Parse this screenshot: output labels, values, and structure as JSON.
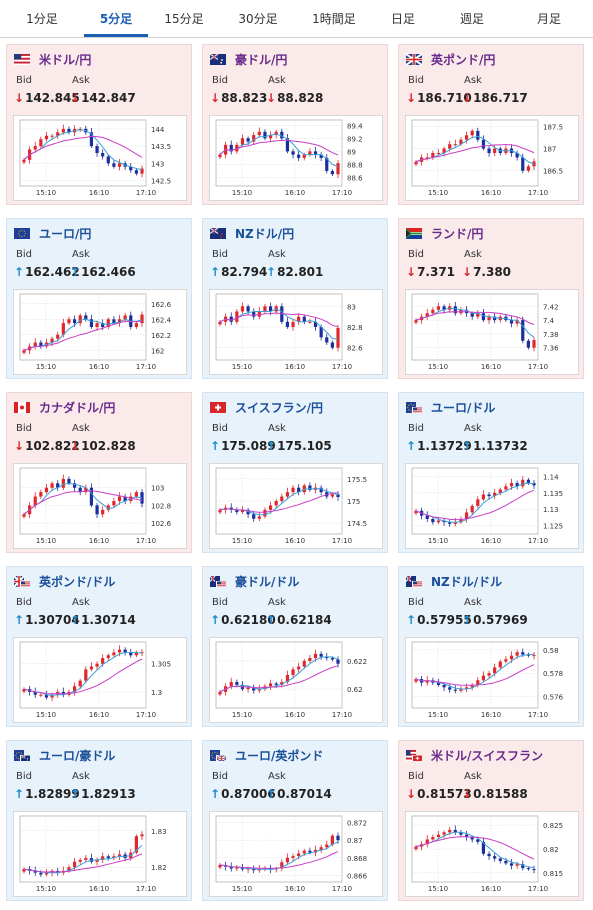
{
  "tabs": [
    {
      "label": "1分足",
      "active": false
    },
    {
      "label": "5分足",
      "active": true
    },
    {
      "label": "15分足",
      "active": false
    },
    {
      "label": "30分足",
      "active": false
    },
    {
      "label": "1時間足",
      "active": false
    },
    {
      "label": "日足",
      "active": false
    },
    {
      "label": "週足",
      "active": false
    },
    {
      "label": "月足",
      "active": false
    }
  ],
  "labels": {
    "bid": "Bid",
    "ask": "Ask"
  },
  "colors": {
    "down": "#d9262a",
    "up": "#1e8bd1",
    "candle_up": "#e0272b",
    "candle_down": "#1a2f9c",
    "ma_short": "#3aa0d8",
    "ma_long": "#c83ec8"
  },
  "cards": [
    {
      "pair": "米ドル/円",
      "flag": "us-flag-icon",
      "dir": "down",
      "bid": "142.845",
      "ask": "142.847",
      "chart_data": {
        "type": "candlestick",
        "x_ticks": [
          "15:10",
          "16:10",
          "17:10"
        ],
        "y_ticks": [
          "144",
          "143.5",
          "143",
          "142.5"
        ],
        "ylim": [
          142.4,
          144.2
        ],
        "closes": [
          143.1,
          143.4,
          143.5,
          143.7,
          143.8,
          143.8,
          143.9,
          144.0,
          143.9,
          144.0,
          144.0,
          143.9,
          143.5,
          143.3,
          143.2,
          143.0,
          142.9,
          143.0,
          142.9,
          142.8,
          142.7,
          142.85
        ]
      }
    },
    {
      "pair": "豪ドル/円",
      "flag": "au-flag-icon",
      "dir": "down",
      "bid": "88.823",
      "ask": "88.828",
      "chart_data": {
        "type": "candlestick",
        "x_ticks": [
          "15:10",
          "16:10",
          "17:10"
        ],
        "y_ticks": [
          "89.4",
          "89.2",
          "89",
          "88.8",
          "88.6"
        ],
        "ylim": [
          88.5,
          89.45
        ],
        "closes": [
          88.95,
          89.1,
          89.0,
          89.1,
          89.2,
          89.15,
          89.25,
          89.3,
          89.2,
          89.25,
          89.3,
          89.2,
          89.0,
          88.95,
          88.9,
          88.95,
          89.0,
          88.95,
          88.9,
          88.7,
          88.65,
          88.82
        ]
      }
    },
    {
      "pair": "英ポンド/円",
      "flag": "gb-flag-icon",
      "dir": "down",
      "bid": "186.710",
      "ask": "186.717",
      "chart_data": {
        "type": "candlestick",
        "x_ticks": [
          "15:10",
          "16:10",
          "17:10"
        ],
        "y_ticks": [
          "187.5",
          "187",
          "186.5"
        ],
        "ylim": [
          186.2,
          187.6
        ],
        "closes": [
          186.7,
          186.8,
          186.8,
          186.9,
          186.9,
          187.0,
          187.1,
          187.1,
          187.2,
          187.3,
          187.4,
          187.2,
          187.0,
          186.9,
          187.0,
          186.9,
          187.0,
          186.9,
          186.8,
          186.5,
          186.6,
          186.71
        ]
      }
    },
    {
      "pair": "ユーロ/円",
      "flag": "eu-flag-icon",
      "dir": "up",
      "bid": "162.462",
      "ask": "162.466",
      "chart_data": {
        "type": "candlestick",
        "x_ticks": [
          "15:10",
          "16:10",
          "17:10"
        ],
        "y_ticks": [
          "162.6",
          "162.4",
          "162.2",
          "162"
        ],
        "ylim": [
          161.9,
          162.7
        ],
        "closes": [
          162.0,
          162.05,
          162.1,
          162.05,
          162.1,
          162.15,
          162.2,
          162.35,
          162.4,
          162.35,
          162.45,
          162.4,
          162.3,
          162.35,
          162.3,
          162.4,
          162.35,
          162.4,
          162.45,
          162.3,
          162.35,
          162.46
        ]
      }
    },
    {
      "pair": "NZドル/円",
      "flag": "nz-flag-icon",
      "dir": "up",
      "bid": "82.794",
      "ask": "82.801",
      "chart_data": {
        "type": "candlestick",
        "x_ticks": [
          "15:10",
          "16:10",
          "17:10"
        ],
        "y_ticks": [
          "83",
          "82.8",
          "82.6"
        ],
        "ylim": [
          82.5,
          83.1
        ],
        "closes": [
          82.85,
          82.9,
          82.85,
          82.95,
          83.0,
          82.95,
          82.9,
          82.95,
          83.0,
          82.95,
          83.0,
          82.85,
          82.8,
          82.85,
          82.9,
          82.85,
          82.85,
          82.8,
          82.7,
          82.65,
          82.6,
          82.79
        ]
      }
    },
    {
      "pair": "ランド/円",
      "flag": "za-flag-icon",
      "dir": "down",
      "bid": "7.371",
      "ask": "7.380",
      "chart_data": {
        "type": "candlestick",
        "x_ticks": [
          "15:10",
          "16:10",
          "17:10"
        ],
        "y_ticks": [
          "7.42",
          "7.4",
          "7.38",
          "7.36"
        ],
        "ylim": [
          7.345,
          7.435
        ],
        "closes": [
          7.4,
          7.405,
          7.41,
          7.415,
          7.42,
          7.415,
          7.42,
          7.41,
          7.415,
          7.41,
          7.405,
          7.41,
          7.4,
          7.405,
          7.4,
          7.405,
          7.4,
          7.395,
          7.4,
          7.37,
          7.36,
          7.371
        ]
      }
    },
    {
      "pair": "カナダドル/円",
      "flag": "ca-flag-icon",
      "dir": "down",
      "bid": "102.822",
      "ask": "102.828",
      "chart_data": {
        "type": "candlestick",
        "x_ticks": [
          "15:10",
          "16:10",
          "17:10"
        ],
        "y_ticks": [
          "103",
          "102.8",
          "102.6"
        ],
        "ylim": [
          102.5,
          103.2
        ],
        "closes": [
          102.7,
          102.8,
          102.9,
          102.95,
          103.0,
          103.05,
          103.0,
          103.1,
          103.05,
          103.0,
          102.95,
          103.0,
          102.8,
          102.7,
          102.75,
          102.8,
          102.85,
          102.9,
          102.85,
          102.9,
          102.95,
          102.82
        ]
      }
    },
    {
      "pair": "スイスフラン/円",
      "flag": "ch-flag-icon",
      "dir": "up",
      "bid": "175.089",
      "ask": "175.105",
      "chart_data": {
        "type": "candlestick",
        "x_ticks": [
          "15:10",
          "16:10",
          "17:10"
        ],
        "y_ticks": [
          "175.5",
          "175",
          "174.5"
        ],
        "ylim": [
          174.3,
          175.7
        ],
        "closes": [
          174.8,
          174.85,
          174.8,
          174.75,
          174.8,
          174.7,
          174.6,
          174.65,
          174.8,
          174.9,
          175.0,
          175.1,
          175.2,
          175.3,
          175.2,
          175.35,
          175.25,
          175.3,
          175.2,
          175.1,
          175.15,
          175.09
        ]
      }
    },
    {
      "pair": "ユーロ/ドル",
      "flag": "eu-us-flag-icon",
      "dir": "up",
      "bid": "1.13729",
      "ask": "1.13732",
      "chart_data": {
        "type": "candlestick",
        "x_ticks": [
          "15:10",
          "16:10",
          "17:10"
        ],
        "y_ticks": [
          "1.14",
          "1.135",
          "1.13",
          "1.125"
        ],
        "ylim": [
          1.123,
          1.142
        ],
        "closes": [
          1.1295,
          1.128,
          1.127,
          1.126,
          1.1265,
          1.126,
          1.1255,
          1.126,
          1.127,
          1.129,
          1.131,
          1.133,
          1.1345,
          1.134,
          1.135,
          1.136,
          1.137,
          1.138,
          1.137,
          1.139,
          1.138,
          1.1373
        ]
      }
    },
    {
      "pair": "英ポンド/ドル",
      "flag": "gb-us-flag-icon",
      "dir": "up",
      "bid": "1.30704",
      "ask": "1.30714",
      "chart_data": {
        "type": "candlestick",
        "x_ticks": [
          "15:10",
          "16:10",
          "17:10"
        ],
        "y_ticks": [
          "1.305",
          "1.3"
        ],
        "ylim": [
          1.2975,
          1.3085
        ],
        "closes": [
          1.3005,
          1.3,
          1.2995,
          1.2995,
          1.299,
          1.2995,
          1.3,
          1.2995,
          1.3,
          1.301,
          1.302,
          1.304,
          1.3045,
          1.305,
          1.306,
          1.3065,
          1.307,
          1.3075,
          1.307,
          1.3065,
          1.307,
          1.30704
        ]
      }
    },
    {
      "pair": "豪ドル/ドル",
      "flag": "au-us-flag-icon",
      "dir": "up",
      "bid": "0.62180",
      "ask": "0.62184",
      "chart_data": {
        "type": "candlestick",
        "x_ticks": [
          "15:10",
          "16:10",
          "17:10"
        ],
        "y_ticks": [
          "0.622",
          "0.62"
        ],
        "ylim": [
          0.6188,
          0.6232
        ],
        "closes": [
          0.6198,
          0.6202,
          0.6205,
          0.6203,
          0.62,
          0.6201,
          0.6199,
          0.62,
          0.6202,
          0.6204,
          0.6203,
          0.6205,
          0.621,
          0.6214,
          0.6216,
          0.622,
          0.6222,
          0.6225,
          0.6223,
          0.6222,
          0.6221,
          0.6218
        ]
      }
    },
    {
      "pair": "NZドル/ドル",
      "flag": "nz-us-flag-icon",
      "dir": "up",
      "bid": "0.57955",
      "ask": "0.57969",
      "chart_data": {
        "type": "candlestick",
        "x_ticks": [
          "15:10",
          "16:10",
          "17:10"
        ],
        "y_ticks": [
          "0.58",
          "0.578",
          "0.576"
        ],
        "ylim": [
          0.5752,
          0.5805
        ],
        "closes": [
          0.5775,
          0.5772,
          0.5774,
          0.5772,
          0.577,
          0.5768,
          0.5766,
          0.5765,
          0.5767,
          0.5768,
          0.577,
          0.5774,
          0.5778,
          0.578,
          0.5785,
          0.579,
          0.5792,
          0.5795,
          0.5798,
          0.5796,
          0.5795,
          0.57955
        ]
      }
    },
    {
      "pair": "ユーロ/豪ドル",
      "flag": "eu-au-flag-icon",
      "dir": "up",
      "bid": "1.82899",
      "ask": "1.82913",
      "chart_data": {
        "type": "candlestick",
        "x_ticks": [
          "15:10",
          "16:10",
          "17:10"
        ],
        "y_ticks": [
          "1.83",
          "1.82"
        ],
        "ylim": [
          1.8165,
          1.8335
        ],
        "closes": [
          1.8195,
          1.819,
          1.8185,
          1.818,
          1.8185,
          1.819,
          1.8185,
          1.819,
          1.82,
          1.8215,
          1.822,
          1.8225,
          1.8215,
          1.822,
          1.823,
          1.8225,
          1.823,
          1.8235,
          1.8225,
          1.824,
          1.8285,
          1.829
        ]
      }
    },
    {
      "pair": "ユーロ/英ポンド",
      "flag": "eu-gb-flag-icon",
      "dir": "up",
      "bid": "0.87006",
      "ask": "0.87014",
      "chart_data": {
        "type": "candlestick",
        "x_ticks": [
          "15:10",
          "16:10",
          "17:10"
        ],
        "y_ticks": [
          "0.872",
          "0.87",
          "0.868",
          "0.866"
        ],
        "ylim": [
          0.8655,
          0.8725
        ],
        "closes": [
          0.8672,
          0.867,
          0.8668,
          0.8669,
          0.8667,
          0.8668,
          0.8666,
          0.8667,
          0.8668,
          0.8667,
          0.8668,
          0.8675,
          0.868,
          0.8682,
          0.8685,
          0.8688,
          0.8686,
          0.8689,
          0.8692,
          0.8695,
          0.8705,
          0.87
        ]
      }
    },
    {
      "pair": "米ドル/スイスフラン",
      "flag": "us-ch-flag-icon",
      "dir": "down",
      "bid": "0.81573",
      "ask": "0.81588",
      "chart_data": {
        "type": "candlestick",
        "x_ticks": [
          "15:10",
          "16:10",
          "17:10"
        ],
        "y_ticks": [
          "0.825",
          "0.82",
          "0.815"
        ],
        "ylim": [
          0.8135,
          0.8265
        ],
        "closes": [
          0.8205,
          0.821,
          0.822,
          0.8225,
          0.823,
          0.8235,
          0.824,
          0.8235,
          0.823,
          0.8225,
          0.822,
          0.8215,
          0.819,
          0.8185,
          0.818,
          0.8175,
          0.817,
          0.8165,
          0.8168,
          0.816,
          0.8158,
          0.8157
        ]
      }
    }
  ]
}
